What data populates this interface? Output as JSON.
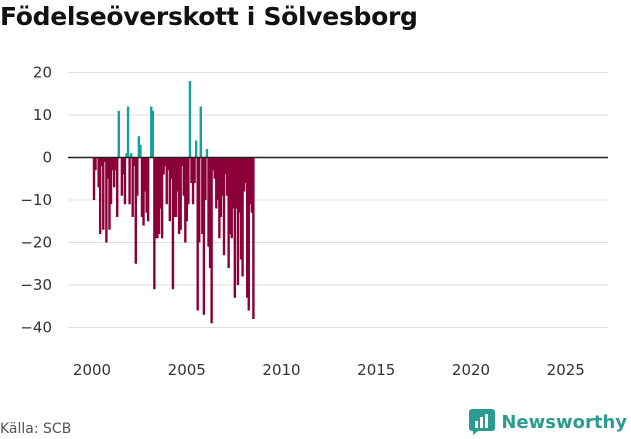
{
  "title": "Födelseöverskott i Sölvesborg",
  "source": "Källa: SCB",
  "brand": "Newsworthy",
  "colors": {
    "positive": "#15a19a",
    "negative": "#8b0038",
    "grid": "#dddddd",
    "zero": "#222222",
    "brand": "#2e9b93"
  },
  "chart_data": {
    "type": "bar",
    "title": "Födelseöverskott i Sölvesborg",
    "xlabel": "",
    "ylabel": "",
    "ylim": [
      -45,
      22
    ],
    "yticks": [
      20,
      10,
      0,
      -10,
      -20,
      -30,
      -40
    ],
    "xticks": [
      2000,
      2005,
      2010,
      2015,
      2020,
      2025
    ],
    "x_start": 2000.0,
    "x_step": 0.08333333,
    "values": [
      -10,
      -3,
      0,
      -7,
      -18,
      -2,
      -17,
      -1,
      -20,
      -5,
      -17,
      -11,
      -3,
      -7,
      -3,
      -14,
      11,
      0,
      -9,
      -4,
      -11,
      1,
      12,
      -11,
      1,
      -14,
      -2,
      -25,
      -9,
      5,
      3,
      -14,
      -16,
      -8,
      -13,
      -15,
      0,
      12,
      11,
      -31,
      -19,
      -19,
      -18,
      -12,
      -19,
      -4,
      -2,
      -11,
      -3,
      -15,
      -5,
      -31,
      -14,
      -14,
      -8,
      -18,
      -17,
      -2,
      -9,
      -20,
      -15,
      -11,
      18,
      -6,
      -11,
      -6,
      4,
      -36,
      -20,
      12,
      -18,
      -37,
      -10,
      2,
      -21,
      -26,
      -39,
      -3,
      -5,
      -12,
      -10,
      -19,
      -14,
      -9,
      -23,
      -4,
      -9,
      -26,
      -18,
      -19,
      -12,
      -33,
      -12,
      -30,
      -13,
      -24,
      -28,
      -8,
      -6,
      -33,
      -36,
      -11,
      -13,
      -38
    ]
  }
}
